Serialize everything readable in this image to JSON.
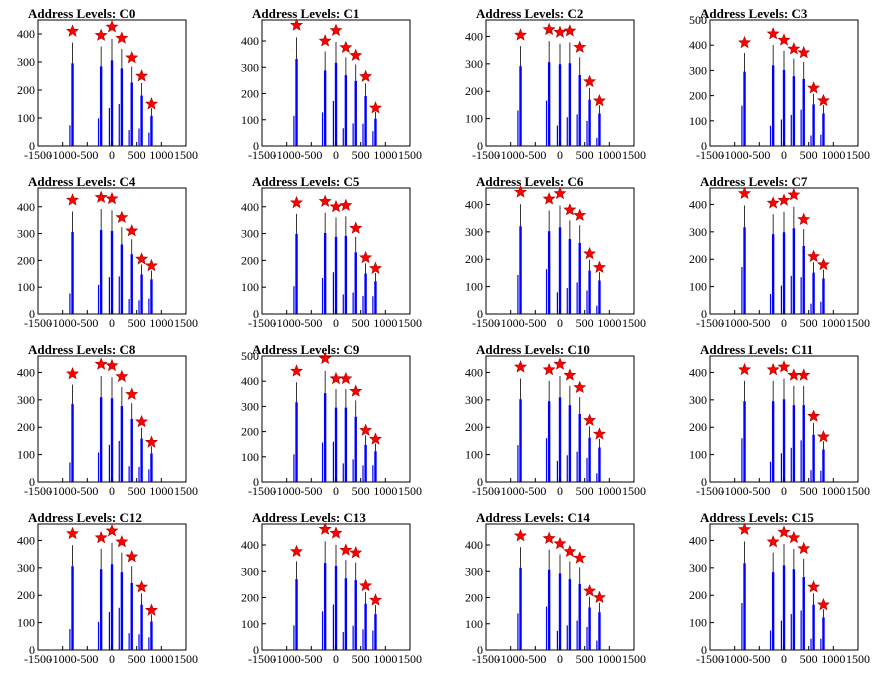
{
  "chart_data": [
    {
      "type": "bar",
      "title": "Address Levels: C0",
      "xlim": [
        -1500,
        1500
      ],
      "ylim": [
        0,
        450
      ],
      "yticks": [
        0,
        100,
        200,
        300,
        400
      ],
      "xticks": [
        -1500,
        -1000,
        -500,
        0,
        500,
        1000,
        1500
      ],
      "peaks": [
        [
          -800,
          410
        ],
        [
          -220,
          395
        ],
        [
          0,
          425
        ],
        [
          200,
          385
        ],
        [
          400,
          315
        ],
        [
          600,
          250
        ],
        [
          800,
          150
        ]
      ],
      "colors": {
        "bars": "#0000ff",
        "markers": "#ff0000"
      }
    },
    {
      "type": "bar",
      "title": "Address Levels: C1",
      "xlim": [
        -1500,
        1500
      ],
      "ylim": [
        0,
        480
      ],
      "yticks": [
        0,
        100,
        200,
        300,
        400
      ],
      "xticks": [
        -1500,
        -1000,
        -500,
        0,
        500,
        1000,
        1500
      ],
      "peaks": [
        [
          -800,
          460
        ],
        [
          -220,
          400
        ],
        [
          0,
          440
        ],
        [
          200,
          375
        ],
        [
          400,
          345
        ],
        [
          600,
          265
        ],
        [
          800,
          145
        ]
      ],
      "colors": {
        "bars": "#0000ff",
        "markers": "#ff0000"
      }
    },
    {
      "type": "bar",
      "title": "Address Levels: C2",
      "xlim": [
        -1500,
        1500
      ],
      "ylim": [
        0,
        460
      ],
      "yticks": [
        0,
        100,
        200,
        300,
        400
      ],
      "xticks": [
        -1500,
        -1000,
        -500,
        0,
        500,
        1000,
        1500
      ],
      "peaks": [
        [
          -800,
          405
        ],
        [
          -220,
          425
        ],
        [
          0,
          415
        ],
        [
          200,
          420
        ],
        [
          400,
          360
        ],
        [
          600,
          235
        ],
        [
          800,
          165
        ]
      ],
      "colors": {
        "bars": "#0000ff",
        "markers": "#ff0000"
      }
    },
    {
      "type": "bar",
      "title": "Address Levels: C3",
      "xlim": [
        -1500,
        1500
      ],
      "ylim": [
        0,
        500
      ],
      "yticks": [
        0,
        100,
        200,
        300,
        400,
        500
      ],
      "xticks": [
        -1500,
        -1000,
        -500,
        0,
        500,
        1000,
        1500
      ],
      "peaks": [
        [
          -800,
          410
        ],
        [
          -220,
          445
        ],
        [
          0,
          420
        ],
        [
          200,
          385
        ],
        [
          400,
          370
        ],
        [
          600,
          230
        ],
        [
          800,
          180
        ]
      ],
      "colors": {
        "bars": "#0000ff",
        "markers": "#ff0000"
      }
    },
    {
      "type": "bar",
      "title": "Address Levels: C4",
      "xlim": [
        -1500,
        1500
      ],
      "ylim": [
        0,
        470
      ],
      "yticks": [
        0,
        100,
        200,
        300,
        400
      ],
      "xticks": [
        -1500,
        -1000,
        -500,
        0,
        500,
        1000,
        1500
      ],
      "peaks": [
        [
          -800,
          425
        ],
        [
          -220,
          435
        ],
        [
          0,
          430
        ],
        [
          200,
          360
        ],
        [
          400,
          310
        ],
        [
          600,
          205
        ],
        [
          800,
          180
        ]
      ],
      "colors": {
        "bars": "#0000ff",
        "markers": "#ff0000"
      }
    },
    {
      "type": "bar",
      "title": "Address Levels: C5",
      "xlim": [
        -1500,
        1500
      ],
      "ylim": [
        0,
        470
      ],
      "yticks": [
        0,
        100,
        200,
        300,
        400
      ],
      "xticks": [
        -1500,
        -1000,
        -500,
        0,
        500,
        1000,
        1500
      ],
      "peaks": [
        [
          -800,
          415
        ],
        [
          -220,
          420
        ],
        [
          0,
          400
        ],
        [
          200,
          405
        ],
        [
          400,
          320
        ],
        [
          600,
          210
        ],
        [
          800,
          170
        ]
      ],
      "colors": {
        "bars": "#0000ff",
        "markers": "#ff0000"
      }
    },
    {
      "type": "bar",
      "title": "Address Levels: C6",
      "xlim": [
        -1500,
        1500
      ],
      "ylim": [
        0,
        460
      ],
      "yticks": [
        0,
        100,
        200,
        300,
        400
      ],
      "xticks": [
        -1500,
        -1000,
        -500,
        0,
        500,
        1000,
        1500
      ],
      "peaks": [
        [
          -800,
          445
        ],
        [
          -220,
          420
        ],
        [
          0,
          440
        ],
        [
          200,
          380
        ],
        [
          400,
          360
        ],
        [
          600,
          220
        ],
        [
          800,
          170
        ]
      ],
      "colors": {
        "bars": "#0000ff",
        "markers": "#ff0000"
      }
    },
    {
      "type": "bar",
      "title": "Address Levels: C7",
      "xlim": [
        -1500,
        1500
      ],
      "ylim": [
        0,
        460
      ],
      "yticks": [
        0,
        100,
        200,
        300,
        400
      ],
      "xticks": [
        -1500,
        -1000,
        -500,
        0,
        500,
        1000,
        1500
      ],
      "peaks": [
        [
          -800,
          440
        ],
        [
          -220,
          405
        ],
        [
          0,
          415
        ],
        [
          200,
          435
        ],
        [
          400,
          345
        ],
        [
          600,
          210
        ],
        [
          800,
          180
        ]
      ],
      "colors": {
        "bars": "#0000ff",
        "markers": "#ff0000"
      }
    },
    {
      "type": "bar",
      "title": "Address Levels: C8",
      "xlim": [
        -1500,
        1500
      ],
      "ylim": [
        0,
        460
      ],
      "yticks": [
        0,
        100,
        200,
        300,
        400
      ],
      "xticks": [
        -1500,
        -1000,
        -500,
        0,
        500,
        1000,
        1500
      ],
      "peaks": [
        [
          -800,
          395
        ],
        [
          -220,
          430
        ],
        [
          0,
          425
        ],
        [
          200,
          385
        ],
        [
          400,
          320
        ],
        [
          600,
          220
        ],
        [
          800,
          145
        ]
      ],
      "colors": {
        "bars": "#0000ff",
        "markers": "#ff0000"
      }
    },
    {
      "type": "bar",
      "title": "Address Levels: C9",
      "xlim": [
        -1500,
        1500
      ],
      "ylim": [
        0,
        500
      ],
      "yticks": [
        0,
        100,
        200,
        300,
        400,
        500
      ],
      "xticks": [
        -1500,
        -1000,
        -500,
        0,
        500,
        1000,
        1500
      ],
      "peaks": [
        [
          -800,
          440
        ],
        [
          -220,
          490
        ],
        [
          0,
          410
        ],
        [
          200,
          410
        ],
        [
          400,
          360
        ],
        [
          600,
          205
        ],
        [
          800,
          170
        ]
      ],
      "colors": {
        "bars": "#0000ff",
        "markers": "#ff0000"
      }
    },
    {
      "type": "bar",
      "title": "Address Levels: C10",
      "xlim": [
        -1500,
        1500
      ],
      "ylim": [
        0,
        460
      ],
      "yticks": [
        0,
        100,
        200,
        300,
        400
      ],
      "xticks": [
        -1500,
        -1000,
        -500,
        0,
        500,
        1000,
        1500
      ],
      "peaks": [
        [
          -800,
          420
        ],
        [
          -220,
          410
        ],
        [
          0,
          430
        ],
        [
          200,
          390
        ],
        [
          400,
          345
        ],
        [
          600,
          225
        ],
        [
          800,
          175
        ]
      ],
      "colors": {
        "bars": "#0000ff",
        "markers": "#ff0000"
      }
    },
    {
      "type": "bar",
      "title": "Address Levels: C11",
      "xlim": [
        -1500,
        1500
      ],
      "ylim": [
        0,
        460
      ],
      "yticks": [
        0,
        100,
        200,
        300,
        400
      ],
      "xticks": [
        -1500,
        -1000,
        -500,
        0,
        500,
        1000,
        1500
      ],
      "peaks": [
        [
          -800,
          410
        ],
        [
          -220,
          410
        ],
        [
          0,
          420
        ],
        [
          200,
          390
        ],
        [
          400,
          390
        ],
        [
          600,
          240
        ],
        [
          800,
          165
        ]
      ],
      "colors": {
        "bars": "#0000ff",
        "markers": "#ff0000"
      }
    },
    {
      "type": "bar",
      "title": "Address Levels: C12",
      "xlim": [
        -1500,
        1500
      ],
      "ylim": [
        0,
        460
      ],
      "yticks": [
        0,
        100,
        200,
        300,
        400
      ],
      "xticks": [
        -1500,
        -1000,
        -500,
        0,
        500,
        1000,
        1500
      ],
      "peaks": [
        [
          -800,
          425
        ],
        [
          -220,
          410
        ],
        [
          0,
          435
        ],
        [
          200,
          395
        ],
        [
          400,
          340
        ],
        [
          600,
          230
        ],
        [
          800,
          145
        ]
      ],
      "colors": {
        "bars": "#0000ff",
        "markers": "#ff0000"
      }
    },
    {
      "type": "bar",
      "title": "Address Levels: C13",
      "xlim": [
        -1500,
        1500
      ],
      "ylim": [
        0,
        480
      ],
      "yticks": [
        0,
        100,
        200,
        300,
        400
      ],
      "xticks": [
        -1500,
        -1000,
        -500,
        0,
        500,
        1000,
        1500
      ],
      "peaks": [
        [
          -800,
          375
        ],
        [
          -220,
          460
        ],
        [
          0,
          445
        ],
        [
          200,
          380
        ],
        [
          400,
          370
        ],
        [
          600,
          245
        ],
        [
          800,
          190
        ]
      ],
      "colors": {
        "bars": "#0000ff",
        "markers": "#ff0000"
      }
    },
    {
      "type": "bar",
      "title": "Address Levels: C14",
      "xlim": [
        -1500,
        1500
      ],
      "ylim": [
        0,
        480
      ],
      "yticks": [
        0,
        100,
        200,
        300,
        400
      ],
      "xticks": [
        -1500,
        -1000,
        -500,
        0,
        500,
        1000,
        1500
      ],
      "peaks": [
        [
          -800,
          435
        ],
        [
          -220,
          425
        ],
        [
          0,
          405
        ],
        [
          200,
          375
        ],
        [
          400,
          350
        ],
        [
          600,
          225
        ],
        [
          800,
          200
        ]
      ],
      "colors": {
        "bars": "#0000ff",
        "markers": "#ff0000"
      }
    },
    {
      "type": "bar",
      "title": "Address Levels: C15",
      "xlim": [
        -1500,
        1500
      ],
      "ylim": [
        0,
        460
      ],
      "yticks": [
        0,
        100,
        200,
        300,
        400
      ],
      "xticks": [
        -1500,
        -1000,
        -500,
        0,
        500,
        1000,
        1500
      ],
      "peaks": [
        [
          -800,
          440
        ],
        [
          -220,
          395
        ],
        [
          0,
          430
        ],
        [
          200,
          410
        ],
        [
          400,
          370
        ],
        [
          600,
          230
        ],
        [
          800,
          165
        ]
      ],
      "colors": {
        "bars": "#0000ff",
        "markers": "#ff0000"
      }
    }
  ]
}
